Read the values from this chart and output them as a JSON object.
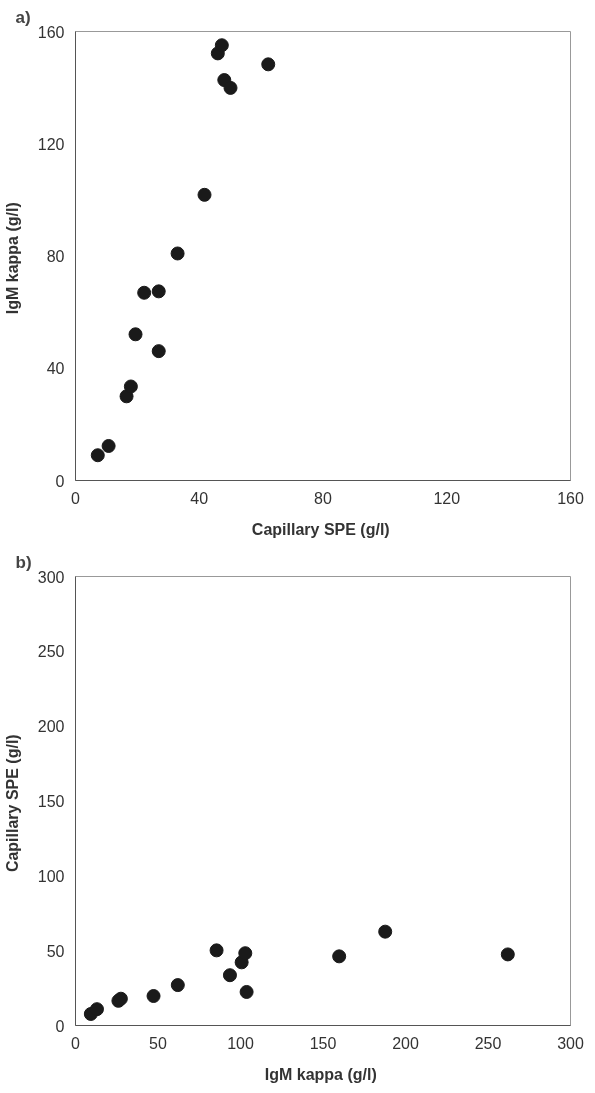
{
  "chart_data": [
    {
      "type": "scatter",
      "title": "a)",
      "xlabel": "Capillary SPE  (g/l)",
      "ylabel": "IgM kappa  (g/l)",
      "marker": "circle",
      "grid": false,
      "xlim": [
        0,
        160
      ],
      "xticks": [
        0,
        40,
        80,
        120,
        160
      ],
      "ylim": [
        0,
        160
      ],
      "yticks": [
        0,
        40,
        80,
        120,
        160
      ],
      "series": [
        {
          "color": "#1a1a1a",
          "x": [
            7.2,
            10.7,
            16.5,
            17.9,
            19.4,
            22.2,
            26.9,
            26.9,
            33.0,
            41.7,
            46.0,
            47.3,
            48.1,
            50.1,
            62.3
          ],
          "values": [
            9.0,
            12.3,
            30.0,
            33.5,
            52.1,
            66.9,
            67.4,
            46.1,
            80.9,
            101.8,
            152.2,
            155.1,
            142.7,
            139.9,
            148.3
          ]
        }
      ]
    },
    {
      "type": "scatter",
      "title": "b)",
      "xlabel": "IgM kappa  (g/l)",
      "ylabel": "Capillary SPE  (g/l)",
      "marker": "circle",
      "grid": false,
      "xlim": [
        0,
        300
      ],
      "xticks": [
        0,
        50,
        100,
        150,
        200,
        250,
        300
      ],
      "ylim": [
        0,
        300
      ],
      "yticks": [
        0,
        50,
        100,
        150,
        200,
        250,
        300
      ],
      "series": [
        {
          "color": "#1a1a1a",
          "x": [
            9.3,
            13.0,
            26.0,
            27.5,
            47.3,
            62.0,
            85.5,
            93.6,
            100.7,
            102.9,
            103.7,
            159.8,
            187.7,
            262.0
          ],
          "values": [
            7.7,
            10.9,
            16.5,
            17.9,
            19.7,
            27.0,
            50.2,
            33.6,
            42.2,
            48.3,
            22.4,
            46.2,
            62.7,
            47.5
          ]
        }
      ]
    }
  ]
}
